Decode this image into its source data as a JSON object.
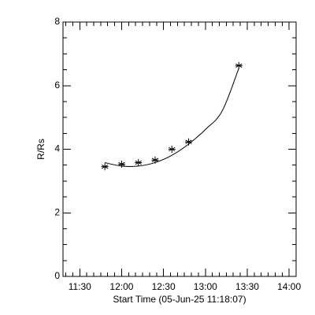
{
  "chart_data": {
    "type": "scatter",
    "xlabel": "Start Time (05-Jun-25 11:18:07)",
    "ylabel": "R/Rs",
    "xlim": [
      "11:18",
      "14:05"
    ],
    "ylim": [
      0,
      8
    ],
    "x_ticks": [
      "11:30",
      "12:00",
      "12:30",
      "13:00",
      "13:30",
      "14:00"
    ],
    "y_ticks": [
      "0",
      "2",
      "4",
      "6",
      "8"
    ],
    "grid": false,
    "marker": "asterisk",
    "series": [
      {
        "points": [
          {
            "x": "11:48",
            "y": 3.45
          },
          {
            "x": "12:00",
            "y": 3.53
          },
          {
            "x": "12:12",
            "y": 3.58
          },
          {
            "x": "12:24",
            "y": 3.66
          },
          {
            "x": "12:36",
            "y": 4.0
          },
          {
            "x": "12:48",
            "y": 4.23
          },
          {
            "x": "13:24",
            "y": 6.63
          }
        ]
      }
    ],
    "fit_curve": {
      "type": "quadratic",
      "x_range": [
        "11:48",
        "13:24"
      ],
      "points": [
        {
          "x": "11:48",
          "y": 3.58
        },
        {
          "x": "12:00",
          "y": 3.47
        },
        {
          "x": "12:12",
          "y": 3.47
        },
        {
          "x": "12:24",
          "y": 3.58
        },
        {
          "x": "12:36",
          "y": 3.81
        },
        {
          "x": "12:48",
          "y": 4.16
        },
        {
          "x": "13:00",
          "y": 4.62
        },
        {
          "x": "13:12",
          "y": 5.2
        },
        {
          "x": "13:24",
          "y": 6.55
        }
      ]
    }
  }
}
